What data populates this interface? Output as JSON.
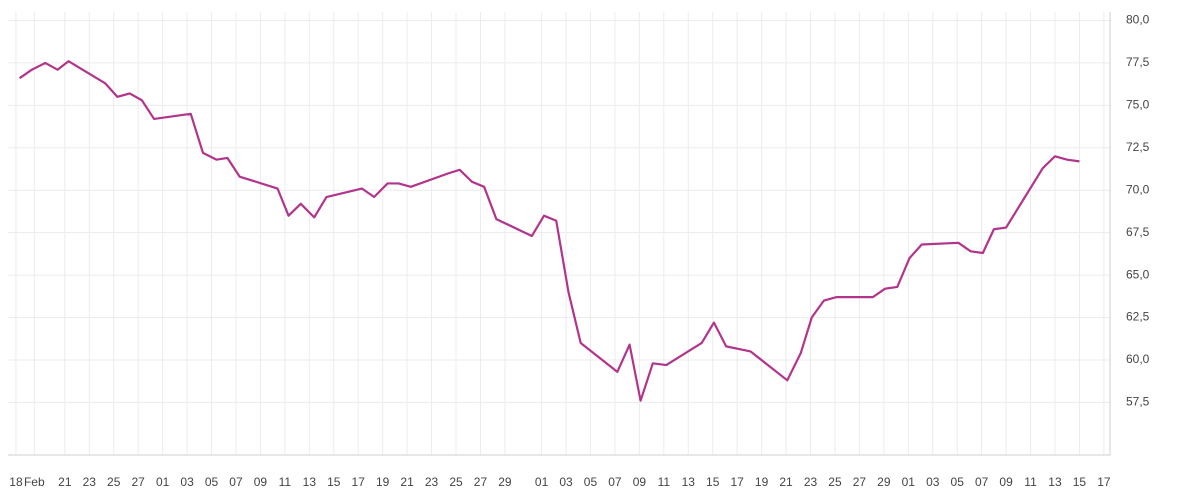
{
  "chart_data": {
    "type": "line",
    "x": [
      0.3,
      1.3,
      2.4,
      3.4,
      4.3,
      7.3,
      8.3,
      9.3,
      10.3,
      11.3,
      14.3,
      15.3,
      16.4,
      17.3,
      18.3,
      21.4,
      22.3,
      23.3,
      24.4,
      25.4,
      28.3,
      29.3,
      30.4,
      31.3,
      32.3,
      35.4,
      36.3,
      37.3,
      38.3,
      39.3,
      42.2,
      43.2,
      44.2,
      45.2,
      46.2,
      49.2,
      50.2,
      51.1,
      52.1,
      53.2,
      56.1,
      57.1,
      58.1,
      60.1,
      63.1,
      64.2,
      65.1,
      66.1,
      67.1,
      70.1,
      71.1,
      72.1,
      73.1,
      74.1,
      77.1,
      78.1,
      79.1,
      80.0,
      81.0,
      84.0,
      85.0,
      86.0,
      87.0
    ],
    "series": [
      {
        "color": "#b1358c",
        "values": [
          76.6,
          77.1,
          77.5,
          77.1,
          77.6,
          76.3,
          75.5,
          75.7,
          75.3,
          74.2,
          74.5,
          72.2,
          71.8,
          71.9,
          70.8,
          70.1,
          68.5,
          69.2,
          68.4,
          69.6,
          70.1,
          69.6,
          70.4,
          70.4,
          70.2,
          71.0,
          71.2,
          70.5,
          70.2,
          68.3,
          67.3,
          68.5,
          68.2,
          64.0,
          61.0,
          59.3,
          60.9,
          57.6,
          59.8,
          59.7,
          61.0,
          62.2,
          60.8,
          60.5,
          58.8,
          60.4,
          62.5,
          63.5,
          63.7,
          63.7,
          64.2,
          64.3,
          66.0,
          66.8,
          66.9,
          66.4,
          66.3,
          67.7,
          67.8,
          71.3,
          72.0,
          71.8,
          71.7
        ]
      }
    ],
    "xlim": [
      -0.65,
      89.5
    ],
    "xticks": [
      {
        "value": 0,
        "label": "18"
      },
      {
        "value": 1.5,
        "label": "Feb"
      },
      {
        "value": 4,
        "label": "21"
      },
      {
        "value": 6,
        "label": "23"
      },
      {
        "value": 8,
        "label": "25"
      },
      {
        "value": 10,
        "label": "27"
      },
      {
        "value": 12,
        "label": "01"
      },
      {
        "value": 14,
        "label": "03"
      },
      {
        "value": 16,
        "label": "05"
      },
      {
        "value": 18,
        "label": "07"
      },
      {
        "value": 20,
        "label": "09"
      },
      {
        "value": 22,
        "label": "11"
      },
      {
        "value": 24,
        "label": "13"
      },
      {
        "value": 26,
        "label": "15"
      },
      {
        "value": 28,
        "label": "17"
      },
      {
        "value": 30,
        "label": "19"
      },
      {
        "value": 32,
        "label": "21"
      },
      {
        "value": 34,
        "label": "23"
      },
      {
        "value": 36,
        "label": "25"
      },
      {
        "value": 38,
        "label": "27"
      },
      {
        "value": 40,
        "label": "29"
      },
      {
        "value": 43,
        "label": "01"
      },
      {
        "value": 45,
        "label": "03"
      },
      {
        "value": 47,
        "label": "05"
      },
      {
        "value": 49,
        "label": "07"
      },
      {
        "value": 51,
        "label": "09"
      },
      {
        "value": 53,
        "label": "11"
      },
      {
        "value": 55,
        "label": "13"
      },
      {
        "value": 57,
        "label": "15"
      },
      {
        "value": 59,
        "label": "17"
      },
      {
        "value": 61,
        "label": "19"
      },
      {
        "value": 63,
        "label": "21"
      },
      {
        "value": 65,
        "label": "23"
      },
      {
        "value": 67,
        "label": "25"
      },
      {
        "value": 69,
        "label": "27"
      },
      {
        "value": 71,
        "label": "29"
      },
      {
        "value": 73,
        "label": "01"
      },
      {
        "value": 75,
        "label": "03"
      },
      {
        "value": 77,
        "label": "05"
      },
      {
        "value": 79,
        "label": "07"
      },
      {
        "value": 81,
        "label": "09"
      },
      {
        "value": 83,
        "label": "11"
      },
      {
        "value": 85,
        "label": "13"
      },
      {
        "value": 87,
        "label": "15"
      },
      {
        "value": 89,
        "label": "17"
      }
    ],
    "ylim": [
      54.4,
      80.5
    ],
    "yticks": [
      {
        "value": 57.5,
        "label": "57,5"
      },
      {
        "value": 60,
        "label": "60,0"
      },
      {
        "value": 62.5,
        "label": "62,5"
      },
      {
        "value": 65,
        "label": "65,0"
      },
      {
        "value": 67.5,
        "label": "67,5"
      },
      {
        "value": 70,
        "label": "70,0"
      },
      {
        "value": 72.5,
        "label": "72,5"
      },
      {
        "value": 75,
        "label": "75,0"
      },
      {
        "value": 77.5,
        "label": "77,5"
      },
      {
        "value": 80,
        "label": "80,0"
      }
    ],
    "grid": true
  }
}
